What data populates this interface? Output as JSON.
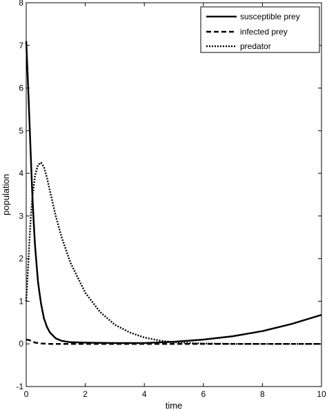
{
  "chart_data": {
    "type": "line",
    "title": "",
    "xlabel": "time",
    "ylabel": "population",
    "xlim": [
      0,
      10
    ],
    "ylim": [
      -1,
      8
    ],
    "xticks": [
      0,
      2,
      4,
      6,
      8,
      10
    ],
    "yticks": [
      -1,
      0,
      1,
      2,
      3,
      4,
      5,
      6,
      7,
      8
    ],
    "grid": false,
    "legend_position": "top-right",
    "series": [
      {
        "name": "susceptible prey",
        "style": "solid",
        "x": [
          0,
          0.05,
          0.1,
          0.15,
          0.2,
          0.25,
          0.3,
          0.4,
          0.5,
          0.6,
          0.7,
          0.8,
          1.0,
          1.2,
          1.5,
          2,
          3,
          4,
          5,
          6,
          7,
          8,
          9,
          10
        ],
        "y": [
          7.1,
          6.3,
          5.4,
          4.5,
          3.6,
          2.9,
          2.3,
          1.45,
          0.95,
          0.6,
          0.4,
          0.27,
          0.13,
          0.07,
          0.04,
          0.03,
          0.02,
          0.02,
          0.05,
          0.1,
          0.18,
          0.3,
          0.47,
          0.68
        ]
      },
      {
        "name": "infected prey",
        "style": "dashed",
        "x": [
          0,
          0.1,
          0.2,
          0.3,
          0.5,
          0.8,
          1,
          2,
          4,
          6,
          8,
          10
        ],
        "y": [
          0.1,
          0.09,
          0.06,
          0.03,
          0.01,
          0.0,
          0.0,
          0.0,
          0.0,
          0.0,
          0.0,
          0.0
        ]
      },
      {
        "name": "predator",
        "style": "dotted",
        "x": [
          0,
          0.05,
          0.1,
          0.15,
          0.2,
          0.3,
          0.4,
          0.5,
          0.6,
          0.7,
          0.8,
          1.0,
          1.2,
          1.5,
          2.0,
          2.5,
          3.0,
          3.5,
          4.0,
          4.5,
          5.0,
          6.0,
          7.0,
          8.0,
          9.0,
          10.0
        ],
        "y": [
          1.0,
          1.6,
          2.3,
          2.9,
          3.4,
          3.95,
          4.2,
          4.25,
          4.15,
          3.9,
          3.6,
          3.0,
          2.5,
          1.9,
          1.2,
          0.75,
          0.45,
          0.27,
          0.15,
          0.08,
          0.04,
          0.01,
          0.0,
          0.0,
          0.0,
          0.0
        ]
      }
    ]
  }
}
